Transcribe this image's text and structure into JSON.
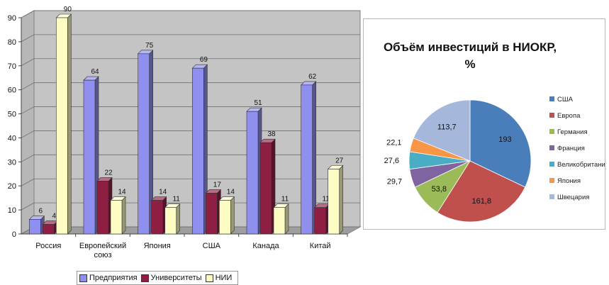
{
  "chart_data": [
    {
      "type": "bar",
      "title": "",
      "xlabel": "",
      "ylabel": "",
      "ylim": [
        0,
        90
      ],
      "yticks": [
        0,
        10,
        20,
        30,
        40,
        50,
        60,
        70,
        80,
        90
      ],
      "grid": true,
      "legend_position": "bottom",
      "categories": [
        "Россия",
        "Европейский союз",
        "Япония",
        "США",
        "Канада",
        "Китай"
      ],
      "category_lines": [
        [
          "Россия"
        ],
        [
          "Европейский",
          "союз"
        ],
        [
          "Япония"
        ],
        [
          "США"
        ],
        [
          "Канада"
        ],
        [
          "Китай"
        ]
      ],
      "series": [
        {
          "name": "Предприятия",
          "values": [
            6,
            64,
            75,
            69,
            51,
            62
          ],
          "color": "#8f8fef"
        },
        {
          "name": "Университеты",
          "values": [
            4,
            22,
            14,
            17,
            38,
            11
          ],
          "color": "#8e1f43"
        },
        {
          "name": "НИИ",
          "values": [
            90,
            14,
            11,
            14,
            11,
            27
          ],
          "color": "#fdfdc3"
        }
      ]
    },
    {
      "type": "pie",
      "title_lines": [
        "Объём инвестиций в НИОКР,",
        "%"
      ],
      "legend_position": "right",
      "labels": [
        "США",
        "Европа",
        "Германия",
        "Франция",
        "Великобритания",
        "Япония",
        "Швецария"
      ],
      "values": [
        193,
        161.8,
        53.8,
        29.7,
        27.6,
        22.1,
        113.7
      ],
      "value_labels": [
        "193",
        "161,8",
        "53,8",
        "29,7",
        "27,6",
        "22,1",
        "113,7"
      ],
      "colors": [
        "#4a7ebb",
        "#c0504d",
        "#9bbb59",
        "#8064a2",
        "#4bacc6",
        "#f79646",
        "#a5b8dc"
      ]
    }
  ]
}
